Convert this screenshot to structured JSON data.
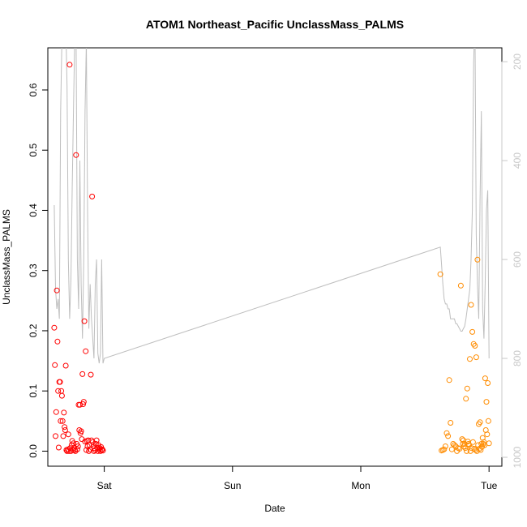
{
  "chart_data": {
    "type": "scatter",
    "title": "ATOM1 Northeast_Pacific UnclassMass_PALMS",
    "xlabel": "Date",
    "ylabel": "UnclassMass_PALMS",
    "x_ticks": [
      {
        "label": "Sat",
        "value": 1.0
      },
      {
        "label": "Sun",
        "value": 2.0
      },
      {
        "label": "Mon",
        "value": 3.0
      },
      {
        "label": "Tue",
        "value": 4.0
      }
    ],
    "xlim": [
      0.56,
      4.1
    ],
    "ylim": [
      -0.025,
      0.67
    ],
    "y_ticks": [
      0.0,
      0.1,
      0.2,
      0.3,
      0.4,
      0.5,
      0.6
    ],
    "y2_ticks": [
      200,
      400,
      600,
      800,
      1000
    ],
    "y2lim": [
      1018,
      172
    ],
    "y2_reversed": true,
    "colors": {
      "series1": "#ff0000",
      "series2": "#ff8c00",
      "line": "#bebebe",
      "right_axis": "#c8c8c8"
    },
    "series": [
      {
        "color": "#ff0000",
        "x": [
          0.61,
          0.615,
          0.62,
          0.625,
          0.63,
          0.635,
          0.64,
          0.645,
          0.65,
          0.655,
          0.66,
          0.665,
          0.67,
          0.675,
          0.68,
          0.685,
          0.69,
          0.695,
          0.7,
          0.705,
          0.71,
          0.715,
          0.72,
          0.725,
          0.73,
          0.735,
          0.74,
          0.745,
          0.75,
          0.755,
          0.76,
          0.765,
          0.77,
          0.775,
          0.78,
          0.785,
          0.79,
          0.795,
          0.8,
          0.805,
          0.81,
          0.815,
          0.82,
          0.825,
          0.83,
          0.835,
          0.84,
          0.845,
          0.85,
          0.855,
          0.86,
          0.865,
          0.87,
          0.875,
          0.88,
          0.885,
          0.89,
          0.895,
          0.9,
          0.905,
          0.91,
          0.915,
          0.92,
          0.925,
          0.93,
          0.935,
          0.94,
          0.945,
          0.95,
          0.955,
          0.96,
          0.965,
          0.97,
          0.975,
          0.98,
          0.985,
          0.99
        ],
        "y": [
          0.205,
          0.143,
          0.025,
          0.065,
          0.267,
          0.182,
          0.1,
          0.006,
          0.115,
          0.115,
          0.05,
          0.1,
          0.092,
          0.05,
          0.025,
          0.064,
          0.04,
          0.035,
          0.142,
          0.002,
          0.0,
          0.003,
          0.028,
          0.0,
          0.642,
          0.005,
          0.0,
          0.01,
          0.017,
          0.002,
          0.013,
          0.005,
          0.002,
          0.0,
          0.492,
          0.012,
          0.003,
          0.008,
          0.077,
          0.035,
          0.077,
          0.03,
          0.033,
          0.02,
          0.128,
          0.078,
          0.082,
          0.216,
          0.016,
          0.166,
          0.002,
          0.017,
          0.008,
          0.018,
          0.0,
          0.01,
          0.003,
          0.127,
          0.018,
          0.423,
          0.015,
          0.008,
          0.0,
          0.005,
          0.002,
          0.012,
          0.018,
          0.006,
          0.0,
          0.01,
          0.003,
          0.005,
          0.0,
          0.007,
          0.002,
          0.003,
          0.001
        ]
      },
      {
        "color": "#ff8c00",
        "x": [
          3.62,
          3.63,
          3.64,
          3.65,
          3.66,
          3.67,
          3.68,
          3.69,
          3.7,
          3.71,
          3.72,
          3.73,
          3.74,
          3.75,
          3.76,
          3.77,
          3.78,
          3.79,
          3.8,
          3.81,
          3.82,
          3.83,
          3.84,
          3.85,
          3.86,
          3.87,
          3.88,
          3.89,
          3.9,
          3.91,
          3.92,
          3.93,
          3.94,
          3.95,
          3.96,
          3.97,
          3.98,
          3.99,
          4.0,
          3.925,
          3.935,
          3.945,
          3.955,
          3.965,
          3.975,
          3.985,
          3.995,
          3.905,
          3.915,
          3.895,
          3.885,
          3.875,
          3.865,
          3.855,
          3.845,
          3.835,
          3.825,
          3.815,
          3.805,
          3.795
        ],
        "y": [
          0.294,
          0.001,
          0.002,
          0.003,
          0.008,
          0.03,
          0.025,
          0.118,
          0.047,
          0.003,
          0.012,
          0.01,
          0.008,
          0.0,
          0.005,
          0.004,
          0.275,
          0.02,
          0.018,
          0.012,
          0.087,
          0.104,
          0.012,
          0.153,
          0.243,
          0.198,
          0.178,
          0.175,
          0.156,
          0.318,
          0.045,
          0.048,
          0.012,
          0.022,
          0.015,
          0.121,
          0.082,
          0.113,
          0.013,
          0.004,
          0.002,
          0.007,
          0.012,
          0.01,
          0.035,
          0.028,
          0.05,
          0.0,
          0.01,
          0.002,
          0.004,
          0.015,
          0.005,
          0.0,
          0.01,
          0.016,
          0.0,
          0.005,
          0.008,
          0.012
        ]
      }
    ],
    "line_series": {
      "color": "#bebebe",
      "x": [
        0.61,
        0.62,
        0.63,
        0.64,
        0.65,
        0.66,
        0.67,
        0.68,
        0.69,
        0.7,
        0.71,
        0.72,
        0.73,
        0.74,
        0.75,
        0.76,
        0.77,
        0.78,
        0.79,
        0.8,
        0.81,
        0.82,
        0.83,
        0.84,
        0.85,
        0.86,
        0.87,
        0.88,
        0.89,
        0.9,
        0.91,
        0.92,
        0.93,
        0.94,
        0.95,
        0.96,
        0.97,
        0.98,
        0.99,
        1.0,
        3.62,
        3.63,
        3.64,
        3.65,
        3.66,
        3.67,
        3.68,
        3.69,
        3.7,
        3.71,
        3.72,
        3.73,
        3.74,
        3.75,
        3.76,
        3.77,
        3.78,
        3.79,
        3.8,
        3.81,
        3.82,
        3.83,
        3.84,
        3.85,
        3.86,
        3.87,
        3.88,
        3.89,
        3.9,
        3.91,
        3.92,
        3.93,
        3.94,
        3.95,
        3.96,
        3.97,
        3.98,
        3.99,
        4.0
      ],
      "y": [
        490,
        660,
        700,
        680,
        720,
        300,
        150,
        120,
        100,
        120,
        250,
        600,
        720,
        640,
        450,
        300,
        150,
        140,
        600,
        700,
        400,
        650,
        760,
        600,
        300,
        160,
        500,
        740,
        650,
        720,
        760,
        800,
        650,
        600,
        790,
        810,
        790,
        600,
        810,
        800,
        575,
        610,
        650,
        680,
        690,
        690,
        700,
        700,
        720,
        720,
        720,
        720,
        730,
        730,
        735,
        740,
        745,
        745,
        740,
        735,
        720,
        700,
        680,
        660,
        600,
        500,
        200,
        120,
        550,
        650,
        720,
        480,
        300,
        700,
        760,
        650,
        500,
        460,
        800
      ]
    }
  }
}
